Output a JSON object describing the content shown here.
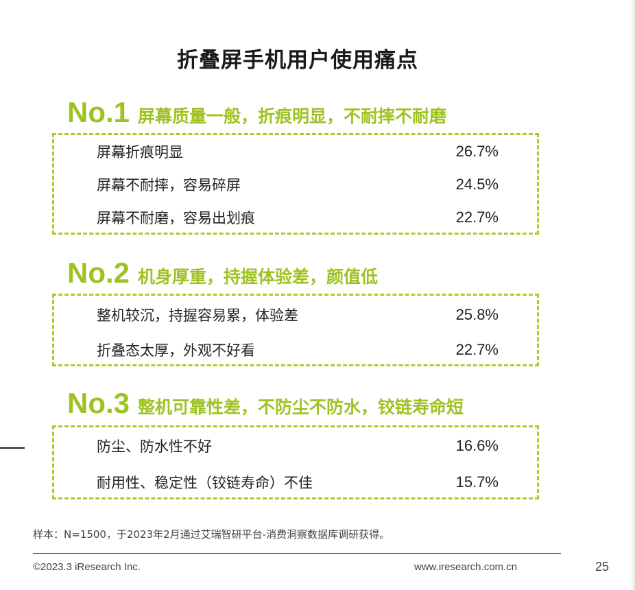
{
  "title": "折叠屏手机用户使用痛点",
  "accent_color": "#9dc322",
  "sections": [
    {
      "num": "No.1",
      "heading": "屏幕质量一般，折痕明显，不耐摔不耐磨",
      "items": [
        {
          "label": "屏幕折痕明显",
          "value": "26.7%"
        },
        {
          "label": "屏幕不耐摔，容易碎屏",
          "value": "24.5%"
        },
        {
          "label": "屏幕不耐磨，容易出划痕",
          "value": "22.7%"
        }
      ]
    },
    {
      "num": "No.2",
      "heading": "机身厚重，持握体验差，颜值低",
      "items": [
        {
          "label": "整机较沉，持握容易累，体验差",
          "value": "25.8%"
        },
        {
          "label": "折叠态太厚，外观不好看",
          "value": "22.7%"
        }
      ]
    },
    {
      "num": "No.3",
      "heading": "整机可靠性差，不防尘不防水，铰链寿命短",
      "items": [
        {
          "label": "防尘、防水性不好",
          "value": "16.6%"
        },
        {
          "label": "耐用性、稳定性（铰链寿命）不佳",
          "value": "15.7%"
        }
      ]
    }
  ],
  "note": "样本：N=1500，于2023年2月通过艾瑞智研平台-消费洞察数据库调研获得。",
  "footer": {
    "copyright": "©2023.3 iResearch Inc.",
    "url": "www.iresearch.com.cn",
    "page": "25"
  }
}
